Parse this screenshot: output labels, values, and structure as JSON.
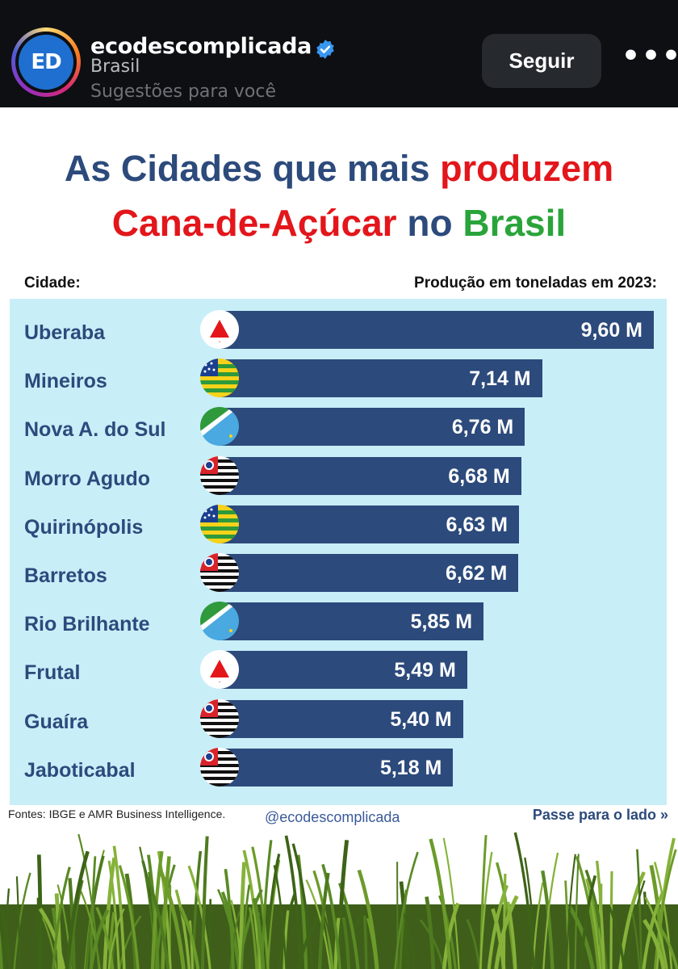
{
  "header": {
    "avatar_text": "ED",
    "username": "ecodescomplicada",
    "location": "Brasil",
    "suggestion": "Sugestões para você",
    "follow_label": "Seguir",
    "more_label": "•••"
  },
  "post": {
    "title_line1": {
      "part1": "As Cidades que mais ",
      "part2": "produzem"
    },
    "title_line2": {
      "part1": "Cana-de-Açúcar",
      "part2": " no ",
      "part3": "Brasil"
    },
    "col_left": "Cidade:",
    "col_right": "Produção em toneladas em 2023:",
    "source": "Fontes: IBGE e AMR Business Intelligence.",
    "handle": "@ecodescomplicada",
    "swipe": "Passe para o lado »"
  },
  "colors": {
    "bar": "#2c4a7b",
    "panel": "#c8eef8",
    "accent_red": "#e3161b",
    "accent_green": "#2aa43a"
  },
  "chart_data": {
    "type": "bar",
    "orientation": "horizontal",
    "categories": [
      "Uberaba",
      "Mineiros",
      "Nova A. do Sul",
      "Morro Agudo",
      "Quirinópolis",
      "Barretos",
      "Rio Brilhante",
      "Frutal",
      "Guaíra",
      "Jaboticabal"
    ],
    "values": [
      9.6,
      7.14,
      6.76,
      6.68,
      6.63,
      6.62,
      5.85,
      5.49,
      5.4,
      5.18
    ],
    "value_labels": [
      "9,60 M",
      "7,14 M",
      "6,76 M",
      "6,68 M",
      "6,63 M",
      "6,62 M",
      "5,85 M",
      "5,49 M",
      "5,40 M",
      "5,18 M"
    ],
    "flags": [
      "mg-flag-icon",
      "go-flag-icon",
      "ms-flag-icon",
      "sp-flag-icon",
      "go-flag-icon",
      "sp-flag-icon",
      "ms-flag-icon",
      "mg-flag-icon",
      "sp-flag-icon",
      "sp-flag-icon"
    ],
    "xlim": [
      0,
      9.6
    ]
  }
}
